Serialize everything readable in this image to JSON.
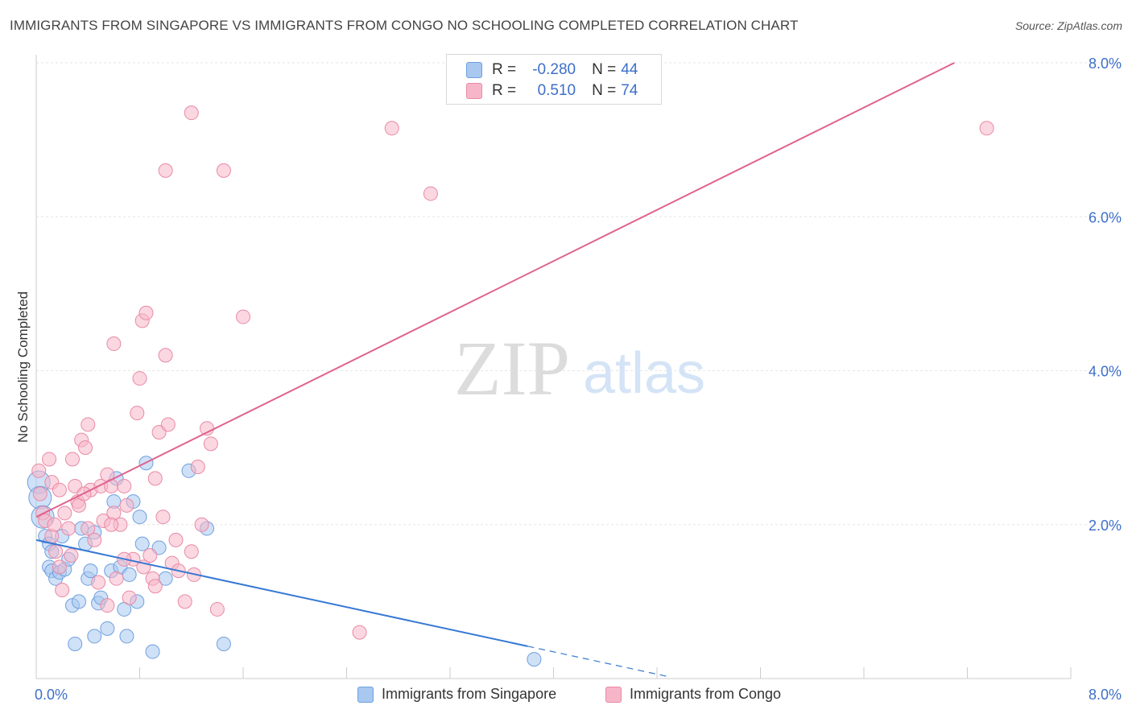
{
  "header": {
    "title": "IMMIGRANTS FROM SINGAPORE VS IMMIGRANTS FROM CONGO NO SCHOOLING COMPLETED CORRELATION CHART",
    "source": "Source: ZipAtlas.com"
  },
  "watermark": {
    "zip": "ZIP",
    "atlas": "atlas"
  },
  "colors": {
    "singapore_fill": "#a8c8f0",
    "singapore_stroke": "#6f9fdf",
    "singapore_line": "#3578d4",
    "congo_fill": "#f7b6c8",
    "congo_stroke": "#e88aa6",
    "congo_line": "#e0638f",
    "axis_text": "#3d6fc9",
    "grid": "#e6e6e6"
  },
  "legend_top": {
    "rows": [
      {
        "r_label": "R =",
        "r_value": "-0.280",
        "n_label": "N =",
        "n_value": "44"
      },
      {
        "r_label": "R =",
        "r_value": "0.510",
        "n_label": "N =",
        "n_value": "74"
      }
    ]
  },
  "legend_bottom": {
    "items": [
      {
        "label": "Immigrants from Singapore"
      },
      {
        "label": "Immigrants from Congo"
      }
    ]
  },
  "chart_data": {
    "type": "scatter",
    "title": "IMMIGRANTS FROM SINGAPORE VS IMMIGRANTS FROM CONGO NO SCHOOLING COMPLETED CORRELATION CHART",
    "xlabel": "",
    "ylabel": "No Schooling Completed",
    "xlim": [
      0,
      8.0
    ],
    "ylim": [
      0,
      8.0
    ],
    "x_tick_labels": [
      "0.0%",
      "8.0%"
    ],
    "y_ticks": [
      2.0,
      4.0,
      6.0,
      8.0
    ],
    "y_tick_labels": [
      "2.0%",
      "4.0%",
      "6.0%",
      "8.0%"
    ],
    "grid": true,
    "legend_position": "top-center",
    "series": [
      {
        "name": "Immigrants from Singapore",
        "R": -0.28,
        "N": 44,
        "trend": {
          "x0": 0.0,
          "y0": 1.8,
          "x1": 3.8,
          "y1": 0.42,
          "dash_to_x": 4.9
        },
        "points": [
          [
            0.02,
            2.55
          ],
          [
            0.03,
            2.35
          ],
          [
            0.05,
            2.1
          ],
          [
            0.07,
            1.85
          ],
          [
            0.1,
            1.75
          ],
          [
            0.12,
            1.65
          ],
          [
            0.1,
            1.45
          ],
          [
            0.12,
            1.4
          ],
          [
            0.15,
            1.3
          ],
          [
            0.18,
            1.38
          ],
          [
            0.22,
            1.42
          ],
          [
            0.25,
            1.55
          ],
          [
            0.28,
            0.95
          ],
          [
            0.33,
            1.0
          ],
          [
            0.35,
            1.95
          ],
          [
            0.38,
            1.75
          ],
          [
            0.4,
            1.3
          ],
          [
            0.42,
            1.4
          ],
          [
            0.45,
            1.9
          ],
          [
            0.48,
            0.98
          ],
          [
            0.5,
            1.05
          ],
          [
            0.55,
            0.65
          ],
          [
            0.58,
            1.4
          ],
          [
            0.6,
            2.3
          ],
          [
            0.62,
            2.6
          ],
          [
            0.65,
            1.45
          ],
          [
            0.68,
            0.9
          ],
          [
            0.72,
            1.35
          ],
          [
            0.75,
            2.3
          ],
          [
            0.78,
            1.0
          ],
          [
            0.8,
            2.1
          ],
          [
            0.82,
            1.75
          ],
          [
            0.85,
            2.8
          ],
          [
            0.9,
            0.35
          ],
          [
            0.95,
            1.7
          ],
          [
            1.0,
            1.3
          ],
          [
            1.18,
            2.7
          ],
          [
            1.32,
            1.95
          ],
          [
            1.45,
            0.45
          ],
          [
            0.3,
            0.45
          ],
          [
            0.45,
            0.55
          ],
          [
            0.7,
            0.55
          ],
          [
            3.85,
            0.25
          ],
          [
            0.2,
            1.85
          ]
        ]
      },
      {
        "name": "Immigrants from Congo",
        "R": 0.51,
        "N": 74,
        "trend": {
          "x0": 0.0,
          "y0": 2.1,
          "x1": 7.1,
          "y1": 8.0
        },
        "points": [
          [
            0.02,
            2.7
          ],
          [
            0.03,
            2.4
          ],
          [
            0.05,
            2.15
          ],
          [
            0.07,
            2.05
          ],
          [
            0.1,
            2.85
          ],
          [
            0.12,
            2.55
          ],
          [
            0.15,
            1.65
          ],
          [
            0.18,
            2.45
          ],
          [
            0.2,
            1.15
          ],
          [
            0.22,
            2.15
          ],
          [
            0.25,
            1.95
          ],
          [
            0.28,
            2.85
          ],
          [
            0.3,
            2.5
          ],
          [
            0.32,
            2.3
          ],
          [
            0.33,
            2.25
          ],
          [
            0.35,
            3.1
          ],
          [
            0.38,
            3.0
          ],
          [
            0.4,
            3.3
          ],
          [
            0.42,
            2.45
          ],
          [
            0.45,
            1.8
          ],
          [
            0.48,
            1.25
          ],
          [
            0.5,
            2.5
          ],
          [
            0.52,
            2.05
          ],
          [
            0.55,
            2.65
          ],
          [
            0.58,
            2.5
          ],
          [
            0.6,
            2.15
          ],
          [
            0.62,
            1.3
          ],
          [
            0.65,
            2.0
          ],
          [
            0.68,
            2.5
          ],
          [
            0.7,
            2.25
          ],
          [
            0.72,
            1.05
          ],
          [
            0.75,
            1.55
          ],
          [
            0.78,
            3.45
          ],
          [
            0.8,
            3.9
          ],
          [
            0.82,
            4.65
          ],
          [
            0.85,
            4.75
          ],
          [
            0.88,
            1.6
          ],
          [
            0.9,
            1.3
          ],
          [
            0.92,
            2.6
          ],
          [
            0.95,
            3.2
          ],
          [
            0.98,
            2.1
          ],
          [
            1.0,
            4.2
          ],
          [
            1.02,
            3.3
          ],
          [
            1.05,
            1.5
          ],
          [
            1.1,
            1.4
          ],
          [
            1.15,
            1.0
          ],
          [
            1.2,
            1.65
          ],
          [
            1.25,
            2.75
          ],
          [
            1.28,
            2.0
          ],
          [
            1.32,
            3.25
          ],
          [
            1.35,
            3.05
          ],
          [
            1.4,
            0.9
          ],
          [
            0.6,
            4.35
          ],
          [
            1.0,
            6.6
          ],
          [
            1.2,
            7.35
          ],
          [
            1.45,
            6.6
          ],
          [
            1.6,
            4.7
          ],
          [
            2.5,
            0.6
          ],
          [
            2.75,
            7.15
          ],
          [
            3.05,
            6.3
          ],
          [
            7.35,
            7.15
          ],
          [
            0.18,
            1.45
          ],
          [
            0.27,
            1.6
          ],
          [
            0.37,
            2.4
          ],
          [
            0.55,
            0.95
          ],
          [
            0.68,
            1.55
          ],
          [
            0.83,
            1.45
          ],
          [
            0.92,
            1.2
          ],
          [
            1.08,
            1.8
          ],
          [
            1.22,
            1.35
          ],
          [
            0.12,
            1.85
          ],
          [
            0.4,
            1.95
          ],
          [
            0.58,
            2.0
          ],
          [
            0.14,
            2.0
          ]
        ]
      }
    ]
  }
}
